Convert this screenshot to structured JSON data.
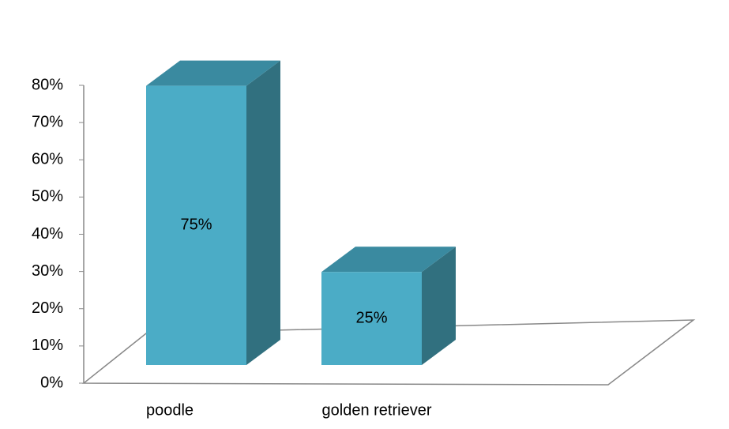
{
  "chart_data": {
    "type": "bar3d",
    "categories": [
      "poodle",
      "golden retriever"
    ],
    "values": [
      75,
      25
    ],
    "value_labels": [
      "75%",
      "25%"
    ],
    "color": "#4bacc6",
    "ylim": [
      0,
      80
    ],
    "yticks": [
      {
        "value": 0,
        "label": "0%"
      },
      {
        "value": 10,
        "label": "10%"
      },
      {
        "value": 20,
        "label": "20%"
      },
      {
        "value": 30,
        "label": "30%"
      },
      {
        "value": 40,
        "label": "40%"
      },
      {
        "value": 50,
        "label": "50%"
      },
      {
        "value": 60,
        "label": "60%"
      },
      {
        "value": 70,
        "label": "70%"
      },
      {
        "value": 80,
        "label": "80%"
      }
    ]
  }
}
